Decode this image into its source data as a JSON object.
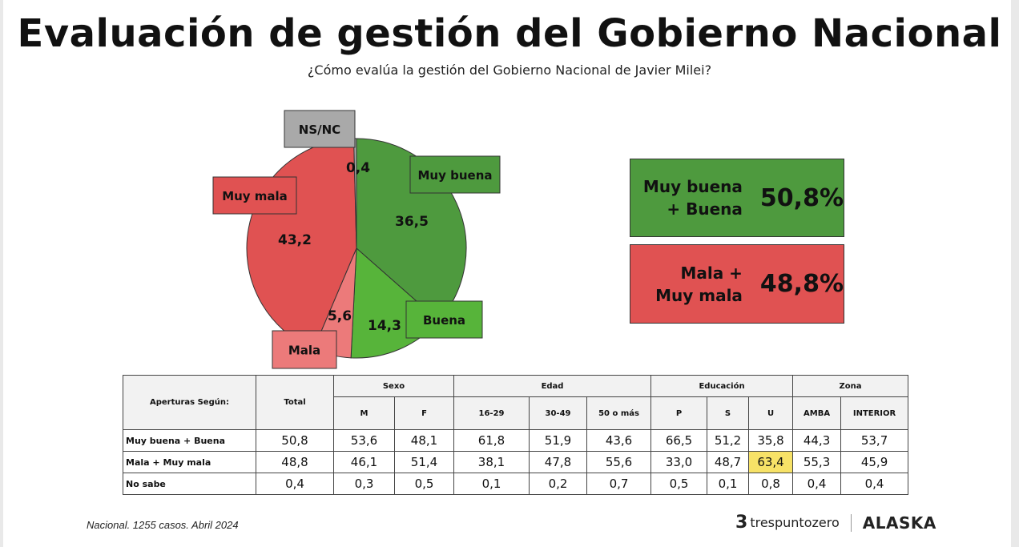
{
  "title": "Evaluación de gestión del Gobierno Nacional",
  "subtitle": "¿Cómo evalúa la gestión del Gobierno Nacional de Javier Milei?",
  "colors": {
    "muy_buena": "#4e9a3e",
    "buena": "#57b43a",
    "mala": "#ec7a7a",
    "muy_mala": "#e05252",
    "nsnc": "#a9a9a9"
  },
  "chart_data": {
    "type": "pie",
    "title": "¿Cómo evalúa la gestión del Gobierno Nacional de Javier Milei?",
    "slices": [
      {
        "label": "Muy buena",
        "value": 36.5,
        "value_label": "36,5",
        "color": "#4e9a3e"
      },
      {
        "label": "Buena",
        "value": 14.3,
        "value_label": "14,3",
        "color": "#57b43a"
      },
      {
        "label": "Mala",
        "value": 5.6,
        "value_label": "5,6",
        "color": "#ec7a7a"
      },
      {
        "label": "Muy mala",
        "value": 43.2,
        "value_label": "43,2",
        "color": "#e05252"
      },
      {
        "label": "NS/NC",
        "value": 0.4,
        "value_label": "0,4",
        "color": "#a9a9a9"
      }
    ]
  },
  "summary": {
    "positive": {
      "label_line1": "Muy buena",
      "label_line2": "+ Buena",
      "value": "50,8%"
    },
    "negative": {
      "label_line1": "Mala +",
      "label_line2": "Muy mala",
      "value": "48,8%"
    }
  },
  "table": {
    "corner": "Aperturas Según:",
    "total_header": "Total",
    "groups": [
      {
        "label": "Sexo",
        "cols": [
          "M",
          "F"
        ]
      },
      {
        "label": "Edad",
        "cols": [
          "16-29",
          "30-49",
          "50 o más"
        ]
      },
      {
        "label": "Educación",
        "cols": [
          "P",
          "S",
          "U"
        ]
      },
      {
        "label": "Zona",
        "cols": [
          "AMBA",
          "INTERIOR"
        ]
      }
    ],
    "rows": [
      {
        "label": "Muy buena + Buena",
        "values": [
          "50,8",
          "53,6",
          "48,1",
          "61,8",
          "51,9",
          "43,6",
          "66,5",
          "51,2",
          "35,8",
          "44,3",
          "53,7"
        ]
      },
      {
        "label": "Mala + Muy mala",
        "values": [
          "48,8",
          "46,1",
          "51,4",
          "38,1",
          "47,8",
          "55,6",
          "33,0",
          "48,7",
          "63,4",
          "55,3",
          "45,9"
        ]
      },
      {
        "label": "No sabe",
        "values": [
          "0,4",
          "0,3",
          "0,5",
          "0,1",
          "0,2",
          "0,7",
          "0,5",
          "0,1",
          "0,8",
          "0,4",
          "0,4"
        ]
      }
    ]
  },
  "footer": {
    "note": "Nacional. 1255 casos. Abril 2024",
    "brand1_mark": "3",
    "brand1_name": "trespuntozero",
    "brand2": "ALASKA"
  }
}
